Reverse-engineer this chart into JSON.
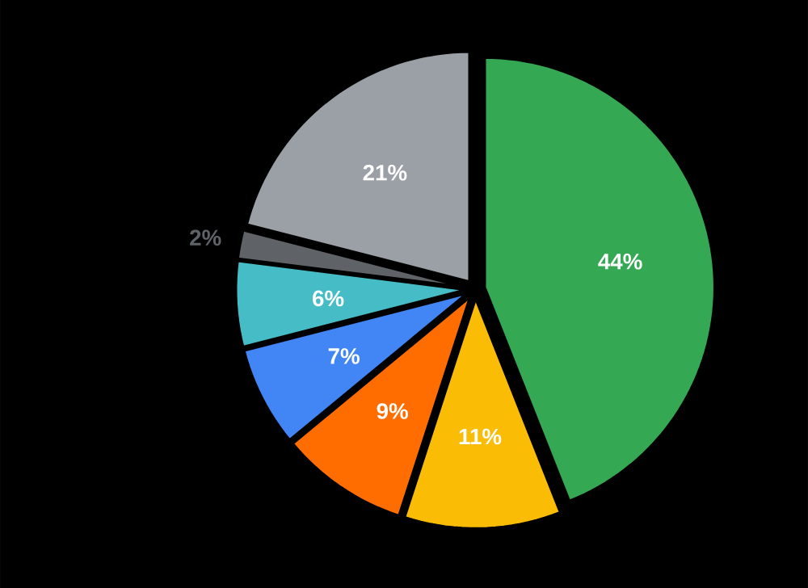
{
  "chart_data": {
    "type": "pie",
    "categories": [
      null,
      null,
      null,
      null,
      null,
      null,
      null
    ],
    "values": [
      44,
      11,
      9,
      7,
      6,
      2,
      21
    ],
    "colors": [
      "#34a853",
      "#fbbc05",
      "#ff6d01",
      "#4285f4",
      "#46bdc6",
      "#5f6368",
      "#9aa0a6"
    ],
    "value_labels": [
      "44%",
      "11%",
      "9%",
      "7%",
      "6%",
      "2%",
      "21%"
    ]
  }
}
